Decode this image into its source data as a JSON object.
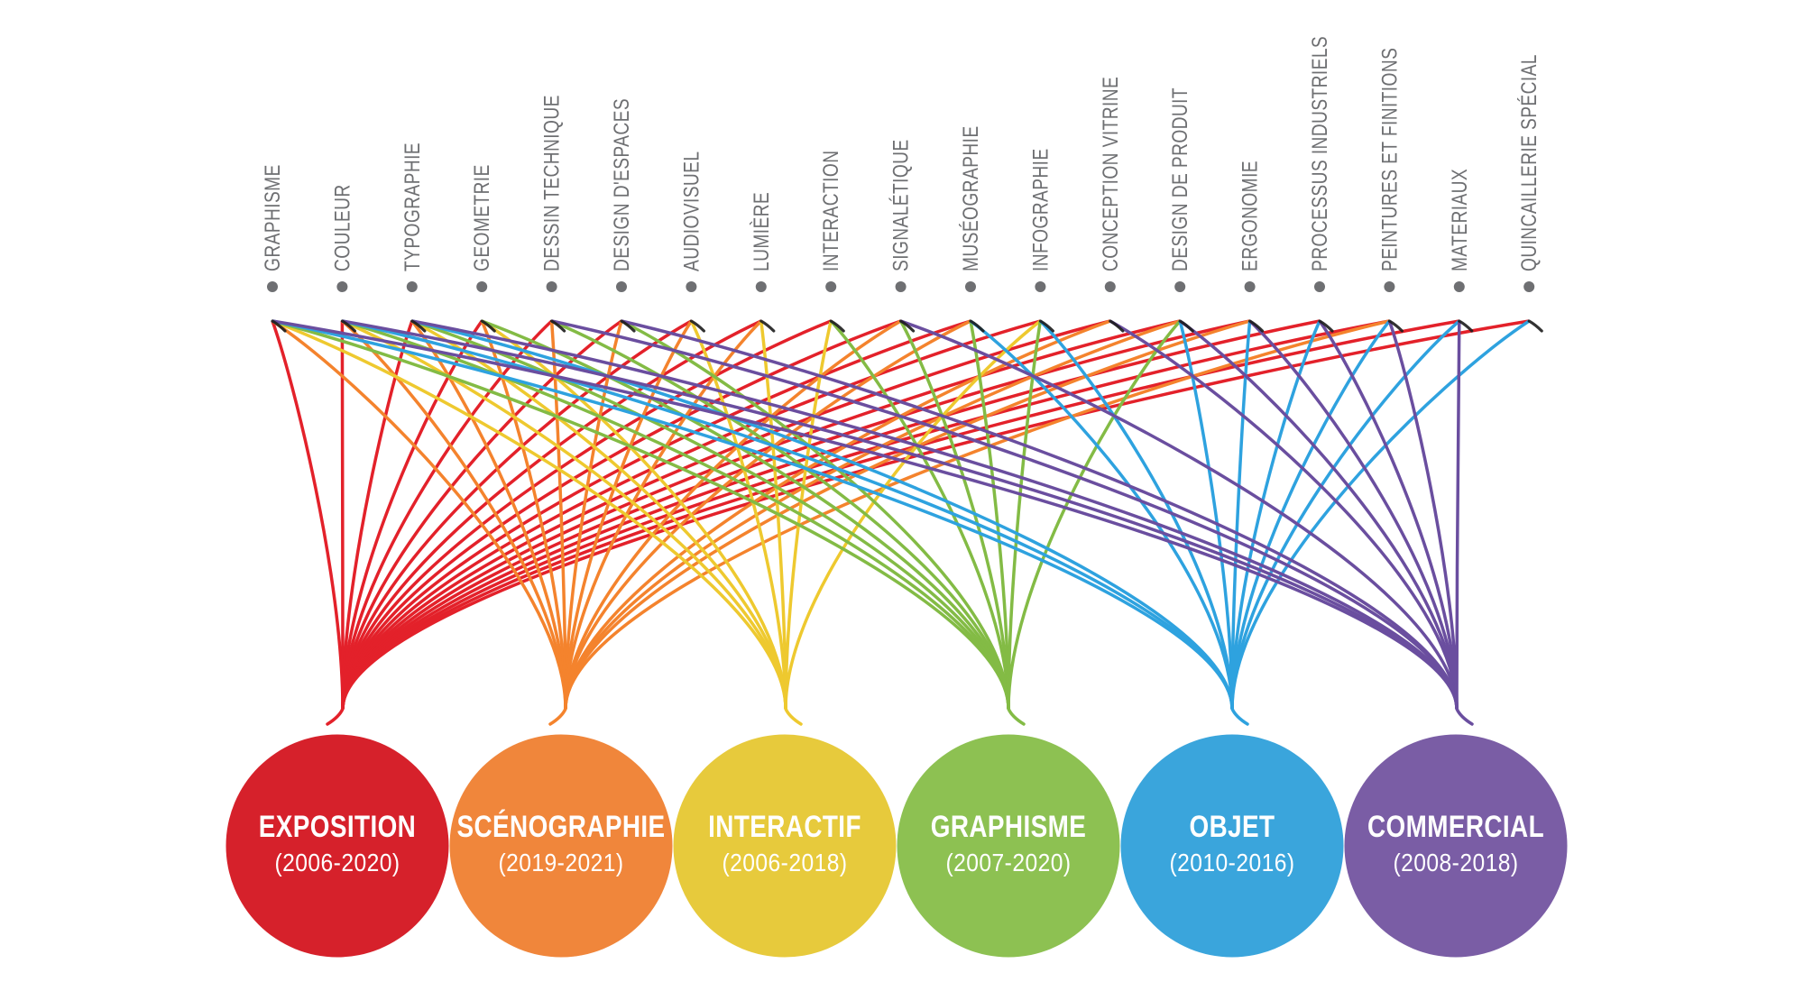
{
  "diagram": {
    "description": "Skills-to-project-categories flow diagram (French). 19 skill nodes on top connected by colored bezier curves converging into 6 colored category circles at the bottom.",
    "label_color": "#6E6F72",
    "background": "#ffffff"
  },
  "skills": [
    {
      "label": "GRAPHISME",
      "connects_to": [
        "exposition",
        "scenographie",
        "interactif",
        "graphisme",
        "objet",
        "commercial"
      ]
    },
    {
      "label": "COULEUR",
      "connects_to": [
        "exposition",
        "scenographie",
        "interactif",
        "graphisme",
        "objet",
        "commercial"
      ]
    },
    {
      "label": "TYPOGRAPHIE",
      "connects_to": [
        "exposition",
        "scenographie",
        "interactif",
        "graphisme",
        "objet",
        "commercial"
      ]
    },
    {
      "label": "GEOMETRIE",
      "connects_to": [
        "exposition",
        "scenographie",
        "interactif",
        "graphisme"
      ]
    },
    {
      "label": "DESSIN TECHNIQUE",
      "connects_to": [
        "exposition",
        "scenographie",
        "graphisme",
        "commercial"
      ]
    },
    {
      "label": "DESIGN D'ESPACES",
      "connects_to": [
        "exposition",
        "scenographie",
        "graphisme",
        "commercial"
      ]
    },
    {
      "label": "AUDIOVISUEL",
      "connects_to": [
        "exposition",
        "scenographie",
        "interactif"
      ]
    },
    {
      "label": "LUMIÈRE",
      "connects_to": [
        "exposition",
        "scenographie",
        "interactif"
      ]
    },
    {
      "label": "INTERACTION",
      "connects_to": [
        "exposition",
        "interactif",
        "graphisme"
      ]
    },
    {
      "label": "SIGNALÉTIQUE",
      "connects_to": [
        "exposition",
        "scenographie",
        "graphisme",
        "commercial"
      ]
    },
    {
      "label": "MUSÉOGRAPHIE",
      "connects_to": [
        "exposition",
        "scenographie",
        "graphisme",
        "objet"
      ]
    },
    {
      "label": "INFOGRAPHIE",
      "connects_to": [
        "exposition",
        "interactif",
        "graphisme",
        "objet"
      ]
    },
    {
      "label": "CONCEPTION VITRINE",
      "connects_to": [
        "exposition",
        "scenographie",
        "commercial"
      ]
    },
    {
      "label": "DESIGN DE PRODUIT",
      "connects_to": [
        "exposition",
        "scenographie",
        "graphisme",
        "objet",
        "commercial"
      ]
    },
    {
      "label": "ERGONOMIE",
      "connects_to": [
        "exposition",
        "scenographie",
        "objet",
        "commercial"
      ]
    },
    {
      "label": "PROCESSUS INDUSTRIELS",
      "connects_to": [
        "exposition",
        "objet",
        "commercial"
      ]
    },
    {
      "label": "PEINTURES ET FINITIONS",
      "connects_to": [
        "exposition",
        "scenographie",
        "objet",
        "commercial"
      ]
    },
    {
      "label": "MATERIAUX",
      "connects_to": [
        "exposition",
        "objet",
        "commercial"
      ]
    },
    {
      "label": "QUINCAILLERIE SPÉCIAL",
      "connects_to": [
        "exposition",
        "objet"
      ]
    }
  ],
  "categories": [
    {
      "id": "exposition",
      "label": "EXPOSITION",
      "years": "(2006-2020)",
      "circle_color": "#D6212B",
      "line_color": "#E3212A",
      "tail": "left"
    },
    {
      "id": "scenographie",
      "label": "SCÉNOGRAPHIE",
      "years": "(2019-2021)",
      "circle_color": "#F0863B",
      "line_color": "#F4832D",
      "tail": "left"
    },
    {
      "id": "interactif",
      "label": "INTERACTIF",
      "years": "(2006-2018)",
      "circle_color": "#E7CA3C",
      "line_color": "#EEC92F",
      "tail": "right"
    },
    {
      "id": "graphisme",
      "label": "GRAPHISME",
      "years": "(2007-2020)",
      "circle_color": "#8DC152",
      "line_color": "#83BB45",
      "tail": "right"
    },
    {
      "id": "objet",
      "label": "OBJET",
      "years": "(2010-2016)",
      "circle_color": "#3AA5DC",
      "line_color": "#2EA2DF",
      "tail": "right"
    },
    {
      "id": "commercial",
      "label": "COMMERCIAL",
      "years": "(2008-2018)",
      "circle_color": "#7A5DA5",
      "line_color": "#6A4E9F",
      "tail": "right"
    }
  ]
}
